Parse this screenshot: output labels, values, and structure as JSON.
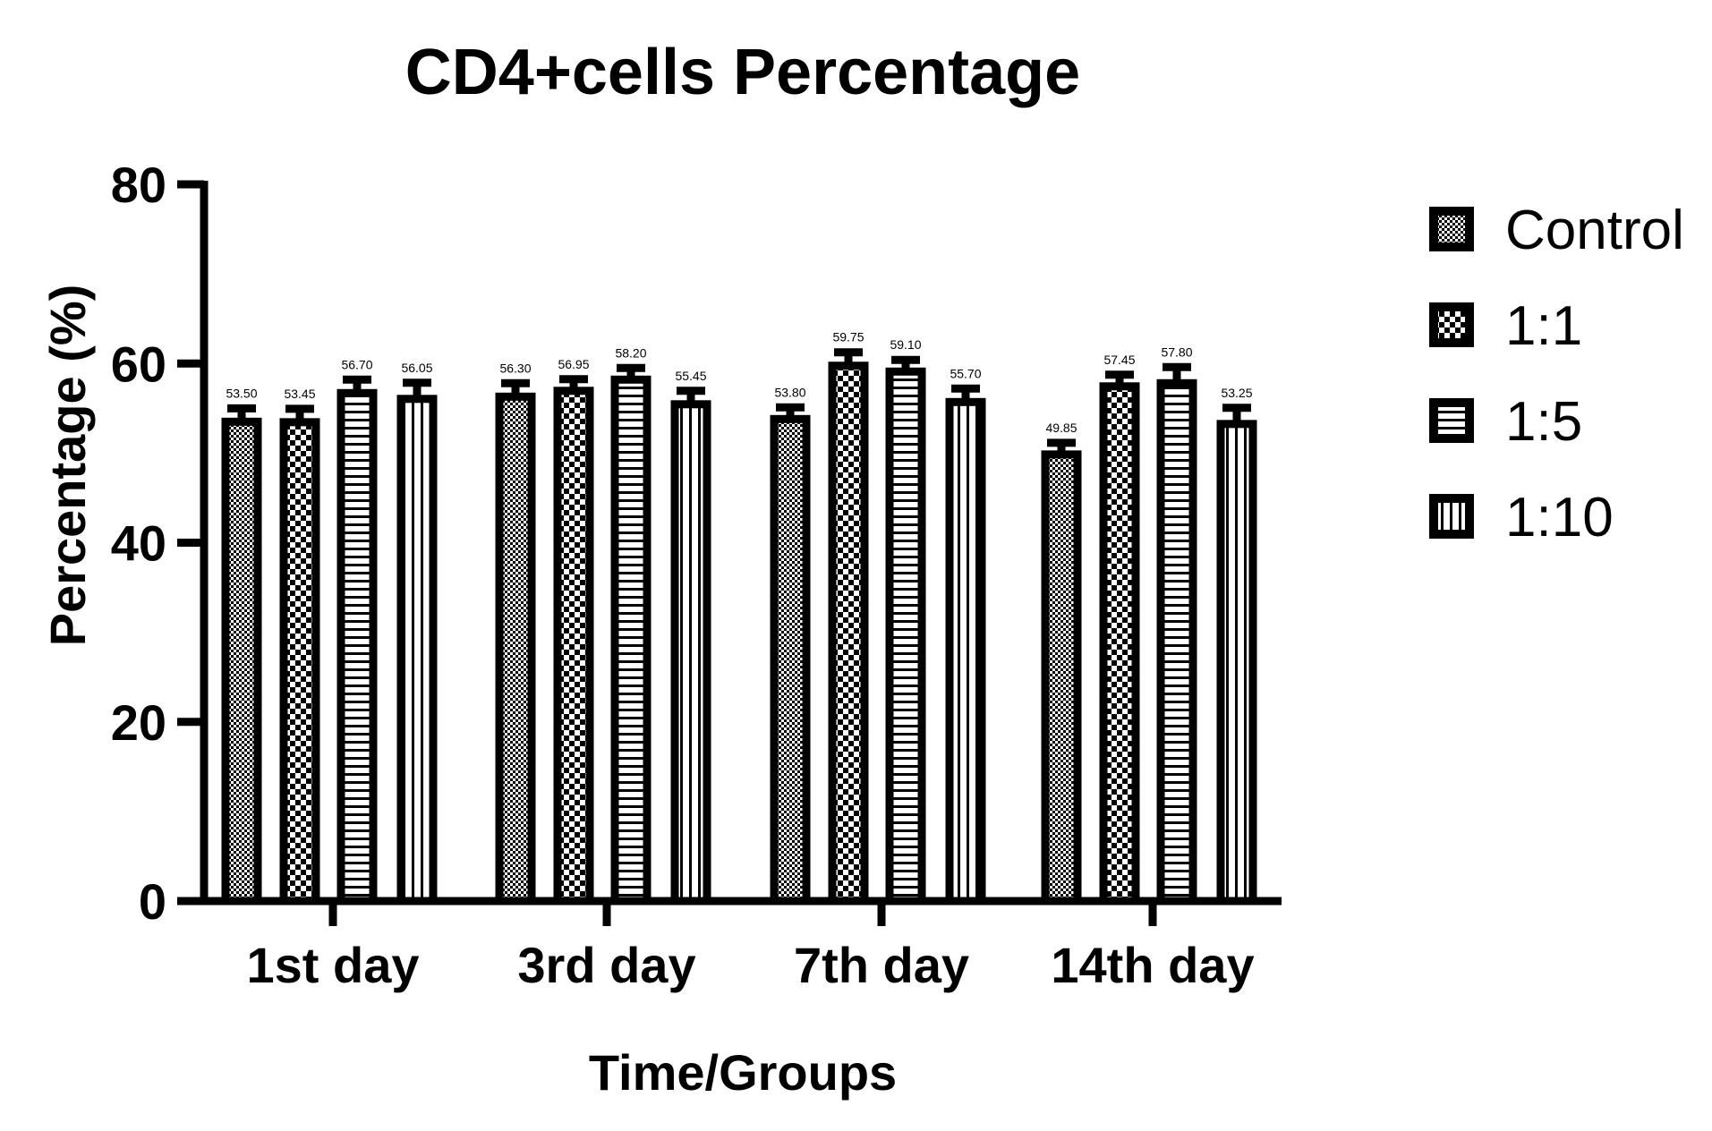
{
  "chart_data": {
    "type": "bar",
    "title": "CD4+cells Percentage",
    "xlabel": "Time/Groups",
    "ylabel": "Percentage (%)",
    "ylim": [
      0,
      80
    ],
    "yticks": [
      "0",
      "20",
      "40",
      "60",
      "80"
    ],
    "categories": [
      "1st day",
      "3rd day",
      "7th day",
      "14th day"
    ],
    "series": [
      {
        "name": "Control",
        "pattern": "checker-fine",
        "values": [
          53.5,
          56.3,
          53.8,
          49.85
        ],
        "labels": [
          "53.50",
          "56.30",
          "53.80",
          "49.85"
        ],
        "errors": [
          1.5,
          1.5,
          1.3,
          1.3
        ]
      },
      {
        "name": "1:1",
        "pattern": "checker-coarse",
        "values": [
          53.45,
          56.95,
          59.75,
          57.45
        ],
        "labels": [
          "53.45",
          "56.95",
          "59.75",
          "57.45"
        ],
        "errors": [
          1.5,
          1.3,
          1.5,
          1.3
        ]
      },
      {
        "name": "1:5",
        "pattern": "horizontal-stripes",
        "values": [
          56.7,
          58.2,
          59.1,
          57.8
        ],
        "labels": [
          "56.70",
          "58.20",
          "59.10",
          "57.80"
        ],
        "errors": [
          1.5,
          1.3,
          1.3,
          1.8
        ]
      },
      {
        "name": "1:10",
        "pattern": "vertical-stripes",
        "values": [
          56.05,
          55.45,
          55.7,
          53.25
        ],
        "labels": [
          "56.05",
          "55.45",
          "55.70",
          "53.25"
        ],
        "errors": [
          1.8,
          1.5,
          1.5,
          1.8
        ]
      }
    ],
    "grid": false,
    "legend_position": "right",
    "colors": {
      "ink": "#000000",
      "background": "#ffffff"
    }
  }
}
